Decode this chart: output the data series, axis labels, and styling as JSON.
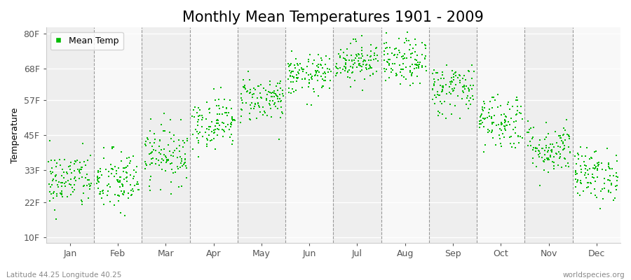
{
  "title": "Monthly Mean Temperatures 1901 - 2009",
  "ylabel": "Temperature",
  "yticks": [
    10,
    22,
    33,
    45,
    57,
    68,
    80
  ],
  "ytick_labels": [
    "10F",
    "22F",
    "33F",
    "45F",
    "57F",
    "68F",
    "80F"
  ],
  "ylim": [
    8,
    82
  ],
  "months": [
    "Jan",
    "Feb",
    "Mar",
    "Apr",
    "May",
    "Jun",
    "Jul",
    "Aug",
    "Sep",
    "Oct",
    "Nov",
    "Dec"
  ],
  "month_centers": [
    0.5,
    1.5,
    2.5,
    3.5,
    4.5,
    5.5,
    6.5,
    7.5,
    8.5,
    9.5,
    10.5,
    11.5
  ],
  "xlim": [
    0,
    12
  ],
  "dot_color": "#00bb00",
  "dot_size": 3,
  "bg_color": "#ffffff",
  "band_colors": [
    "#eeeeee",
    "#f8f8f8"
  ],
  "legend_label": "Mean Temp",
  "bottom_left": "Latitude 44.25 Longitude 40.25",
  "bottom_right": "worldspecies.org",
  "title_fontsize": 15,
  "label_fontsize": 9,
  "tick_fontsize": 9,
  "monthly_mean_temps_F": [
    29.5,
    29.0,
    38.5,
    49.5,
    57.5,
    65.5,
    70.5,
    70.0,
    61.0,
    50.0,
    40.5,
    31.5
  ],
  "monthly_std_F": [
    5.0,
    5.5,
    5.0,
    4.5,
    4.0,
    3.5,
    3.5,
    4.0,
    4.5,
    5.0,
    4.5,
    4.5
  ],
  "n_points": 109
}
